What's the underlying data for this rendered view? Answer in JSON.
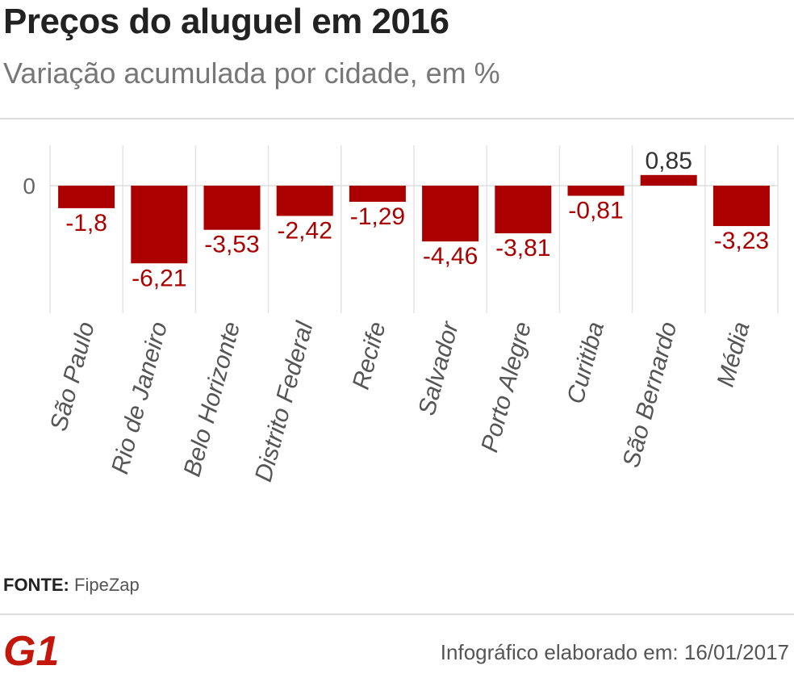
{
  "header": {
    "title": "Preços do aluguel em 2016",
    "subtitle": "Variação acumulada por cidade, em %"
  },
  "chart_data": {
    "type": "bar",
    "title": "Preços do aluguel em 2016",
    "subtitle": "Variação acumulada por cidade, em %",
    "categories": [
      "São Paulo",
      "Rio de Janeiro",
      "Belo Horizonte",
      "Distrito Federal",
      "Recife",
      "Salvador",
      "Porto Alegre",
      "Curitiba",
      "São Bernardo",
      "Média"
    ],
    "values": [
      -1.8,
      -6.21,
      -3.53,
      -2.42,
      -1.29,
      -4.46,
      -3.81,
      -0.81,
      0.85,
      -3.23
    ],
    "value_labels": [
      "-1,8",
      "-6,21",
      "-3,53",
      "-2,42",
      "-1,29",
      "-4,46",
      "-3,81",
      "-0,81",
      "0,85",
      "-3,23"
    ],
    "y_ticks": [
      {
        "value": 0,
        "label": "0"
      }
    ],
    "ylim": [
      -10,
      3.3
    ],
    "xlabel": "",
    "ylabel": "",
    "grid": "vertical",
    "bar_color": "#aa0000",
    "label_color": "#aa0000"
  },
  "source": {
    "label": "FONTE:",
    "value": "FipeZap"
  },
  "logo": {
    "text": "G1",
    "color": "#c4170c"
  },
  "footer": {
    "text": "Infográfico elaborado em: 16/01/2017"
  }
}
